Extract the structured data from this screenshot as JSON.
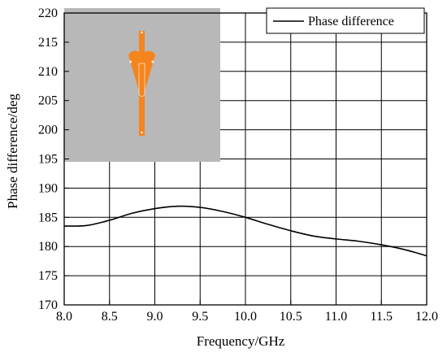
{
  "chart_data": {
    "type": "line",
    "xlabel": "Frequency/GHz",
    "ylabel": "Phase difference/deg",
    "xlim": [
      8.0,
      12.0
    ],
    "ylim": [
      170,
      220
    ],
    "x_ticks": [
      8.0,
      8.5,
      9.0,
      9.5,
      10.0,
      10.5,
      11.0,
      11.5,
      12.0
    ],
    "y_ticks": [
      170,
      175,
      180,
      185,
      190,
      195,
      200,
      205,
      210,
      215,
      220
    ],
    "x_tick_labels": [
      "8.0",
      "8.5",
      "9.0",
      "9.5",
      "10.0",
      "10.5",
      "11.0",
      "11.5",
      "12.0"
    ],
    "y_tick_labels": [
      "170",
      "175",
      "180",
      "185",
      "190",
      "195",
      "200",
      "205",
      "210",
      "215",
      "220"
    ],
    "grid": true,
    "legend_position": "top-right",
    "series": [
      {
        "name": "Phase difference",
        "color": "#000000",
        "x": [
          8.0,
          8.25,
          8.5,
          8.75,
          9.0,
          9.25,
          9.5,
          9.75,
          10.0,
          10.25,
          10.5,
          10.75,
          11.0,
          11.25,
          11.5,
          11.75,
          12.0
        ],
        "y": [
          183.5,
          183.6,
          184.5,
          185.7,
          186.5,
          186.9,
          186.7,
          186.0,
          185.0,
          183.8,
          182.7,
          181.8,
          181.3,
          180.9,
          180.3,
          179.5,
          178.4
        ]
      }
    ]
  },
  "inset": {
    "background_color": "#b8b8b8",
    "antenna_color": "#f5841f"
  }
}
